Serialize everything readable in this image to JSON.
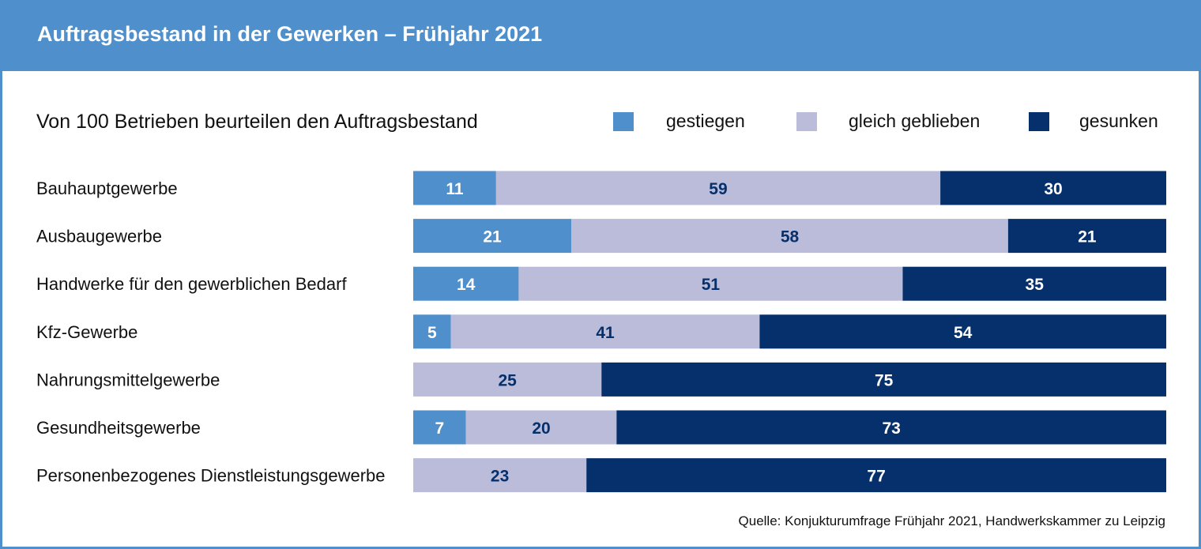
{
  "header": {
    "title": "Auftragsbestand in der Gewerken – Frühjahr 2021"
  },
  "colors": {
    "header_bg": "#4f8fcb",
    "gestiegen": "#4f8fcb",
    "gleich": "#babcd9",
    "gesunken": "#06306b",
    "label_light": "#ffffff",
    "label_dark": "#06306b"
  },
  "chart_data": {
    "type": "bar",
    "orientation": "horizontal",
    "stacked": true,
    "title": "Von 100 Betrieben beurteilen den Auftragsbestand",
    "categories": [
      "Bauhauptgewerbe",
      "Ausbaugewerbe",
      "Handwerke für den gewerblichen Bedarf",
      "Kfz-Gewerbe",
      "Nahrungsmittelgewerbe",
      "Gesundheitsgewerbe",
      "Personenbezogenes Dienstleistungsgewerbe"
    ],
    "series": [
      {
        "name": "gestiegen",
        "values": [
          11,
          21,
          14,
          5,
          0,
          7,
          0
        ]
      },
      {
        "name": "gleich geblieben",
        "values": [
          59,
          58,
          51,
          41,
          25,
          20,
          23
        ]
      },
      {
        "name": "gesunken",
        "values": [
          30,
          21,
          35,
          54,
          75,
          73,
          77
        ]
      }
    ],
    "xlim": [
      0,
      100
    ],
    "grid": false,
    "legend": "top-right"
  },
  "source": "Quelle: Konjukturumfrage Frühjahr 2021, Handwerkskammer zu Leipzig"
}
